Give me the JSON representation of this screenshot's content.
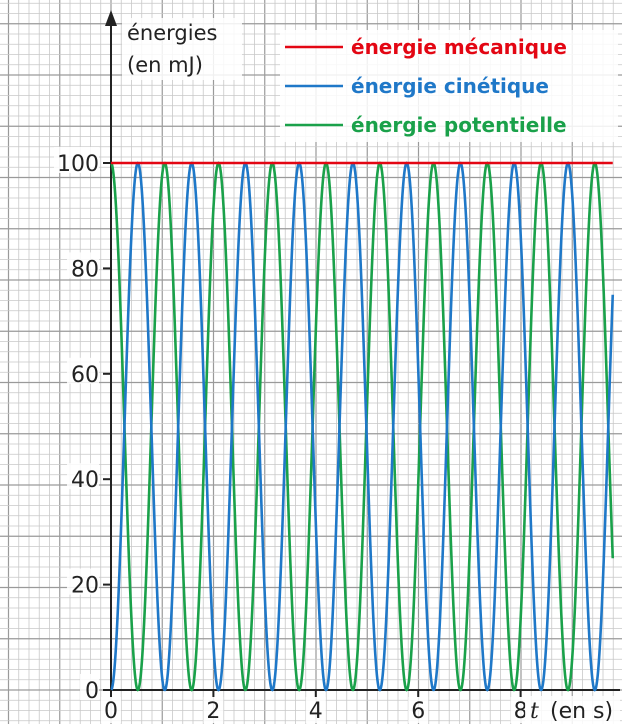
{
  "chart_data": {
    "type": "line",
    "ylabel_line1": "énergies",
    "ylabel_line2": "(en mJ)",
    "xlabel_symbol": "t",
    "xlabel_unit": "(en s)",
    "x_ticks": [
      "0",
      "2",
      "4",
      "6",
      "8"
    ],
    "y_ticks": [
      "0",
      "20",
      "40",
      "60",
      "80",
      "100"
    ],
    "xlim": [
      0,
      9.8
    ],
    "ylim": [
      0,
      100
    ],
    "grid": true,
    "legend_position": "top-right",
    "period_s": 2.1,
    "series": [
      {
        "name": "énergie mécanique",
        "color": "#e30613",
        "formula": "constant",
        "value": 100
      },
      {
        "name": "énergie cinétique",
        "color": "#1f78c8",
        "formula": "100*sin^2(2*pi*t/period)"
      },
      {
        "name": "énergie potentielle",
        "color": "#1aa14a",
        "formula": "100*cos^2(2*pi*t/period)"
      }
    ]
  }
}
